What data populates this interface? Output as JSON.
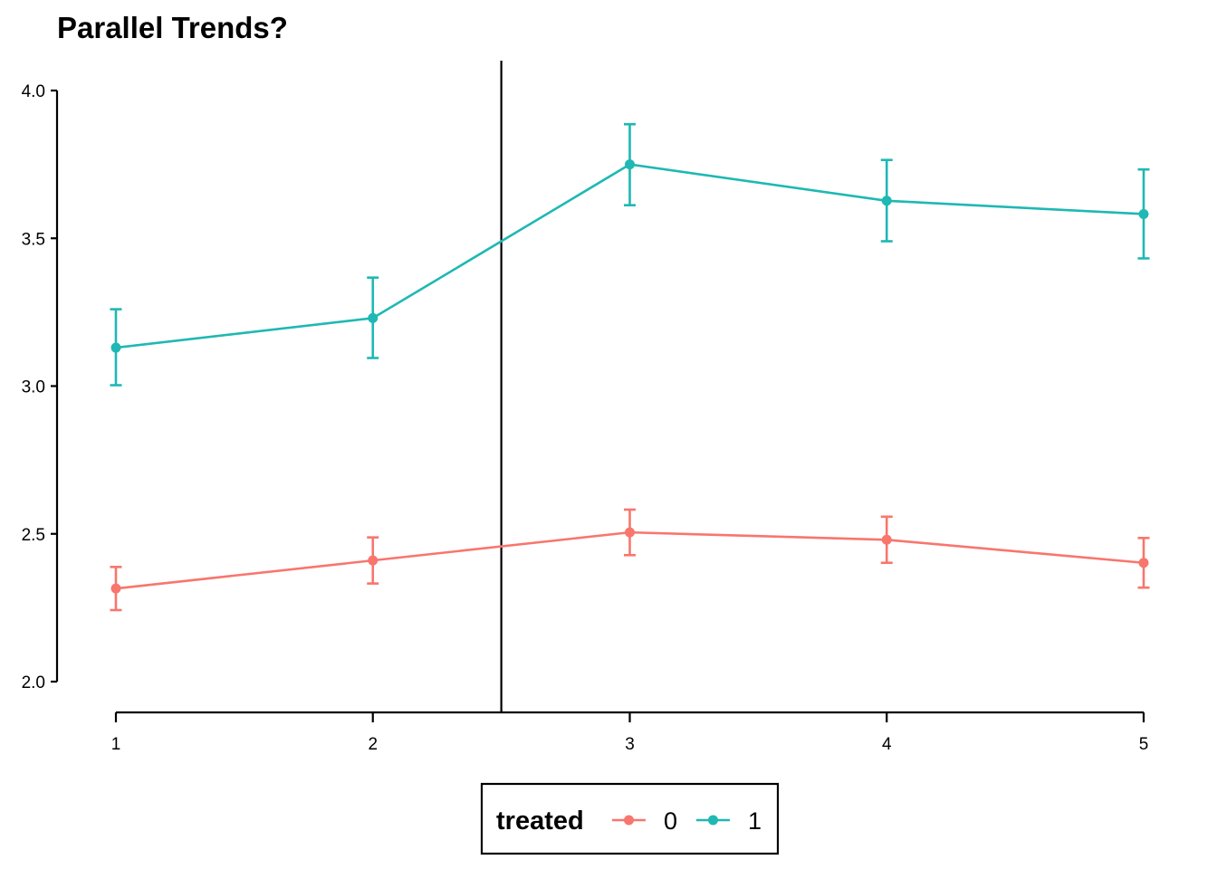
{
  "chart_data": {
    "type": "line",
    "title": "Parallel Trends?",
    "xlabel": "",
    "ylabel": "",
    "x": [
      1,
      2,
      3,
      4,
      5
    ],
    "x_tick_labels": [
      "1",
      "2",
      "3",
      "4",
      "5"
    ],
    "y_tick_values": [
      2.0,
      2.5,
      3.0,
      3.5,
      4.0
    ],
    "y_tick_labels": [
      "2.0",
      "2.5",
      "3.0",
      "3.5",
      "4.0"
    ],
    "xlim": [
      1,
      5
    ],
    "ylim": [
      2.0,
      4.0
    ],
    "vline_x": 2.5,
    "grid": false,
    "legend": {
      "title": "treated",
      "position": "bottom"
    },
    "series": [
      {
        "name": "0",
        "color": "#F8766D",
        "values": [
          2.315,
          2.41,
          2.505,
          2.48,
          2.402
        ],
        "error_low": [
          2.242,
          2.332,
          2.428,
          2.402,
          2.318
        ],
        "error_high": [
          2.388,
          2.488,
          2.582,
          2.558,
          2.486
        ]
      },
      {
        "name": "1",
        "color": "#1FB8B4",
        "values": [
          3.13,
          3.23,
          3.75,
          3.627,
          3.582
        ],
        "error_low": [
          3.003,
          3.095,
          3.612,
          3.49,
          3.432
        ],
        "error_high": [
          3.26,
          3.367,
          3.886,
          3.765,
          3.733
        ]
      }
    ]
  }
}
